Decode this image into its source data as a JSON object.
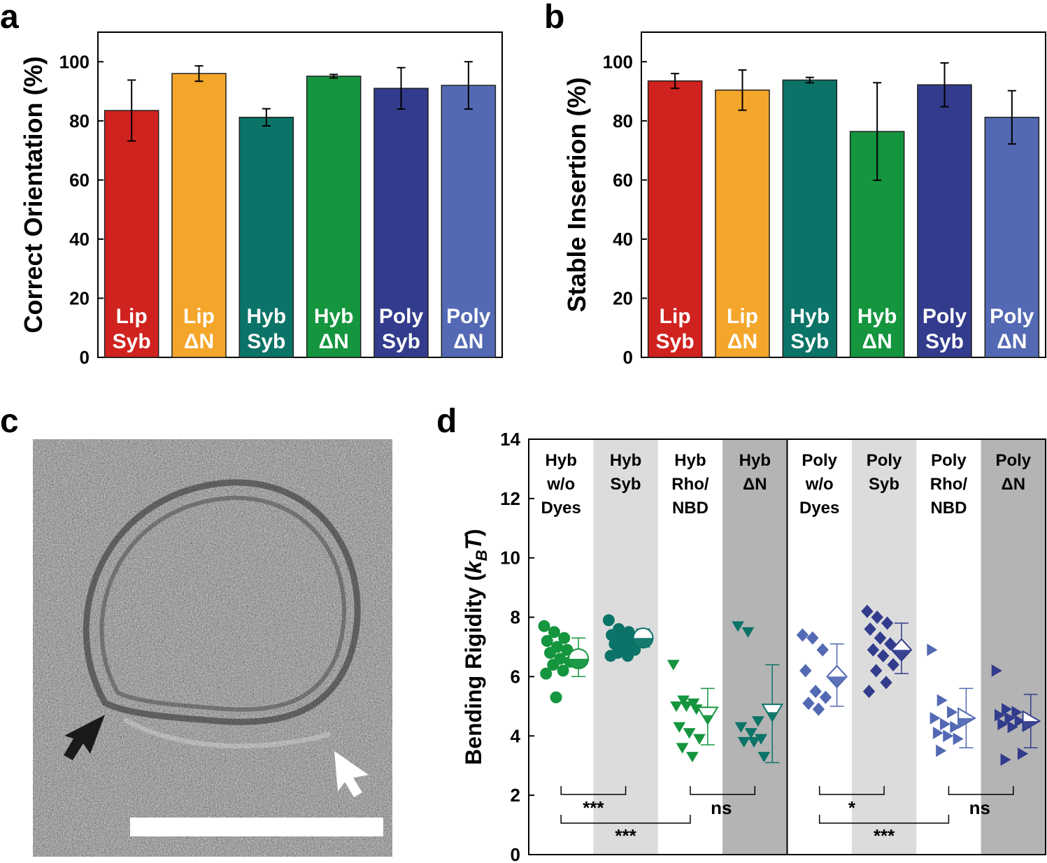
{
  "chart_data": [
    {
      "panel": "a",
      "type": "bar",
      "ylabel": "Correct Orientation (%)",
      "ylim": [
        0,
        110
      ],
      "yticks": [
        "0",
        "20",
        "40",
        "60",
        "80",
        "100"
      ],
      "bars": [
        {
          "line1": "Lip",
          "line2": "Syb",
          "value": 83.5,
          "error": 10.3,
          "color": "#d0221f"
        },
        {
          "line1": "Lip",
          "line2": "ΔN",
          "value": 96,
          "error": 2.6,
          "color": "#f4a62a"
        },
        {
          "line1": "Hyb",
          "line2": "Syb",
          "value": 81.2,
          "error": 2.9,
          "color": "#0b7367"
        },
        {
          "line1": "Hyb",
          "line2": "ΔN",
          "value": 95.1,
          "error": 0.6,
          "color": "#14953e"
        },
        {
          "line1": "Poly",
          "line2": "Syb",
          "value": 91,
          "error": 7,
          "color": "#323b8c"
        },
        {
          "line1": "Poly",
          "line2": "ΔN",
          "value": 92,
          "error": 8,
          "color": "#5369b3"
        }
      ]
    },
    {
      "panel": "b",
      "type": "bar",
      "ylabel": "Stable Insertion (%)",
      "ylim": [
        0,
        110
      ],
      "yticks": [
        "0",
        "20",
        "40",
        "60",
        "80",
        "100"
      ],
      "bars": [
        {
          "line1": "Lip",
          "line2": "Syb",
          "value": 93.5,
          "error": 2.5,
          "color": "#d0221f"
        },
        {
          "line1": "Lip",
          "line2": "ΔN",
          "value": 90.4,
          "error": 6.8,
          "color": "#f4a62a"
        },
        {
          "line1": "Hyb",
          "line2": "Syb",
          "value": 93.8,
          "error": 0.9,
          "color": "#0b7367"
        },
        {
          "line1": "Hyb",
          "line2": "ΔN",
          "value": 76.4,
          "error": 16.5,
          "color": "#14953e"
        },
        {
          "line1": "Poly",
          "line2": "Syb",
          "value": 92.2,
          "error": 7.4,
          "color": "#323b8c"
        },
        {
          "line1": "Poly",
          "line2": "ΔN",
          "value": 81.2,
          "error": 9,
          "color": "#5369b3"
        }
      ]
    },
    {
      "panel": "d",
      "type": "scatter",
      "ylabel_main": "Bending Rigidity (",
      "ylabel_k": "k",
      "ylabel_sub": "B",
      "ylabel_t": "T",
      "ylabel_end": ")",
      "ylim": [
        0,
        14
      ],
      "yticks": [
        "0",
        "2",
        "4",
        "6",
        "8",
        "10",
        "12",
        "14"
      ],
      "groups": [
        {
          "lines": [
            "Hyb",
            "w/o",
            "Dyes"
          ],
          "marker": "circle",
          "color": "#14953e",
          "bg": "#ffffff",
          "mean": 6.6,
          "sd_low": 6.0,
          "sd_high": 7.3,
          "points": [
            7.7,
            7.5,
            7.3,
            7.2,
            7.0,
            6.9,
            6.8,
            6.6,
            6.5,
            6.4,
            6.2,
            6.1,
            5.3
          ]
        },
        {
          "lines": [
            "Hyb",
            "Syb"
          ],
          "marker": "circle",
          "color": "#0b7367",
          "bg": "#dcdcdc",
          "mean": 7.3,
          "sd_low": 7.0,
          "sd_high": 7.6,
          "points": [
            7.9,
            7.6,
            7.5,
            7.4,
            7.3,
            7.2,
            7.1,
            7.0,
            6.9,
            6.8,
            6.7,
            6.7
          ]
        },
        {
          "lines": [
            "Hyb",
            "Rho/",
            "NBD"
          ],
          "marker": "triangle-down",
          "color": "#14953e",
          "bg": "#ffffff",
          "mean": 4.7,
          "sd_low": 3.7,
          "sd_high": 5.6,
          "points": [
            6.4,
            5.2,
            5.1,
            5.0,
            5.0,
            4.9,
            4.3,
            4.1,
            3.9,
            3.6,
            3.3
          ]
        },
        {
          "lines": [
            "Hyb",
            "ΔN"
          ],
          "marker": "triangle-down",
          "color": "#0b7367",
          "bg": "#b4b4b4",
          "mean": 4.8,
          "sd_low": 3.1,
          "sd_high": 6.4,
          "points": [
            7.7,
            7.5,
            4.5,
            4.3,
            4.1,
            3.9,
            3.8,
            3.8,
            3.3
          ]
        },
        {
          "lines": [
            "Poly",
            "w/o",
            "Dyes"
          ],
          "marker": "diamond",
          "color": "#5369b3",
          "bg": "#ffffff",
          "mean": 6.0,
          "sd_low": 5.0,
          "sd_high": 7.1,
          "points": [
            7.4,
            7.3,
            6.9,
            6.2,
            5.5,
            5.3,
            5.1,
            4.9
          ]
        },
        {
          "lines": [
            "Poly",
            "Syb"
          ],
          "marker": "diamond",
          "color": "#323b8c",
          "bg": "#dcdcdc",
          "mean": 6.9,
          "sd_low": 6.1,
          "sd_high": 7.8,
          "points": [
            8.2,
            8.0,
            7.8,
            7.6,
            7.3,
            7.1,
            6.9,
            6.7,
            6.4,
            6.2,
            5.8,
            5.5
          ]
        },
        {
          "lines": [
            "Poly",
            "Rho/",
            "NBD"
          ],
          "marker": "triangle-right",
          "color": "#5369b3",
          "bg": "#ffffff",
          "mean": 4.6,
          "sd_low": 3.6,
          "sd_high": 5.6,
          "points": [
            6.9,
            5.2,
            4.8,
            4.6,
            4.4,
            4.3,
            4.1,
            4.0,
            3.9,
            3.5
          ]
        },
        {
          "lines": [
            "Poly",
            "ΔN"
          ],
          "marker": "triangle-right",
          "color": "#323b8c",
          "bg": "#b4b4b4",
          "mean": 4.5,
          "sd_low": 3.6,
          "sd_high": 5.4,
          "points": [
            6.2,
            4.9,
            4.8,
            4.7,
            4.6,
            4.5,
            4.4,
            4.3,
            3.4,
            3.2
          ]
        }
      ],
      "significance": [
        {
          "from": 0,
          "to": 1,
          "label": "***",
          "row": 1
        },
        {
          "from": 0,
          "to": 2,
          "label": "***",
          "row": 2
        },
        {
          "from": 2,
          "to": 3,
          "label": "ns",
          "row": 1
        },
        {
          "from": 4,
          "to": 5,
          "label": "*",
          "row": 1
        },
        {
          "from": 4,
          "to": 6,
          "label": "***",
          "row": 2
        },
        {
          "from": 6,
          "to": 7,
          "label": "ns",
          "row": 1
        }
      ]
    }
  ],
  "panels": {
    "a": "a",
    "b": "b",
    "c": "c",
    "d": "d"
  }
}
